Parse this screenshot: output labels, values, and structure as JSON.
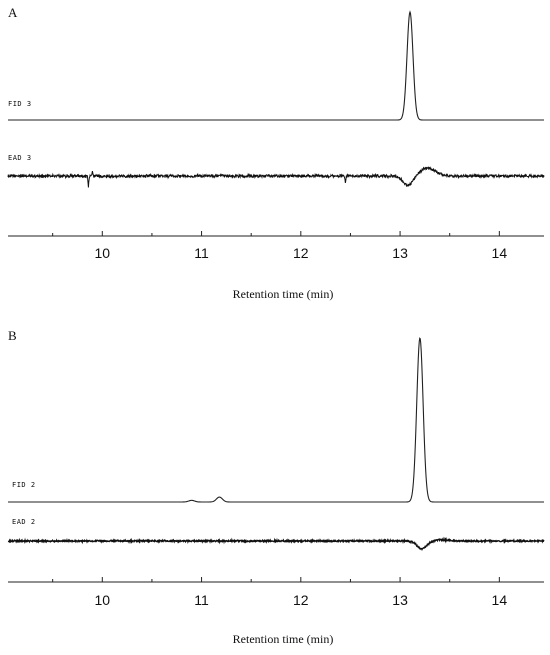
{
  "chart_data": [
    {
      "type": "line",
      "panel_label": "A",
      "xlabel": "Retention time (min)",
      "xlim": [
        9.05,
        14.45
      ],
      "xticks": [
        10,
        11,
        12,
        13,
        14
      ],
      "tick_labels": [
        "10",
        "11",
        "12",
        "13",
        "14"
      ],
      "series": [
        {
          "name": "FID 3",
          "kind": "fid",
          "baseline": 0,
          "peaks": [
            {
              "x": 13.1,
              "height": 1.0,
              "width": 0.03
            }
          ]
        },
        {
          "name": "EAD 3",
          "kind": "ead",
          "noise": 0.06,
          "spikes": [
            {
              "x": 9.86,
              "height": -0.5
            },
            {
              "x": 9.9,
              "height": 0.2
            },
            {
              "x": 12.45,
              "height": -0.3
            }
          ],
          "response": {
            "x": 13.08,
            "depth": -0.45,
            "recovery": 0.35
          }
        }
      ]
    },
    {
      "type": "line",
      "panel_label": "B",
      "xlabel": "Retention time (min)",
      "xlim": [
        9.05,
        14.45
      ],
      "xticks": [
        10,
        11,
        12,
        13,
        14
      ],
      "tick_labels": [
        "10",
        "11",
        "12",
        "13",
        "14"
      ],
      "series": [
        {
          "name": "FID 2",
          "kind": "fid",
          "baseline": 0,
          "peaks": [
            {
              "x": 10.9,
              "height": 0.01,
              "width": 0.03
            },
            {
              "x": 11.18,
              "height": 0.03,
              "width": 0.03
            },
            {
              "x": 13.2,
              "height": 1.0,
              "width": 0.032
            }
          ]
        },
        {
          "name": "EAD 2",
          "kind": "ead",
          "noise": 0.03,
          "spikes": [],
          "response": {
            "x": 13.22,
            "depth": -0.35,
            "recovery": 0.05
          }
        }
      ]
    }
  ]
}
